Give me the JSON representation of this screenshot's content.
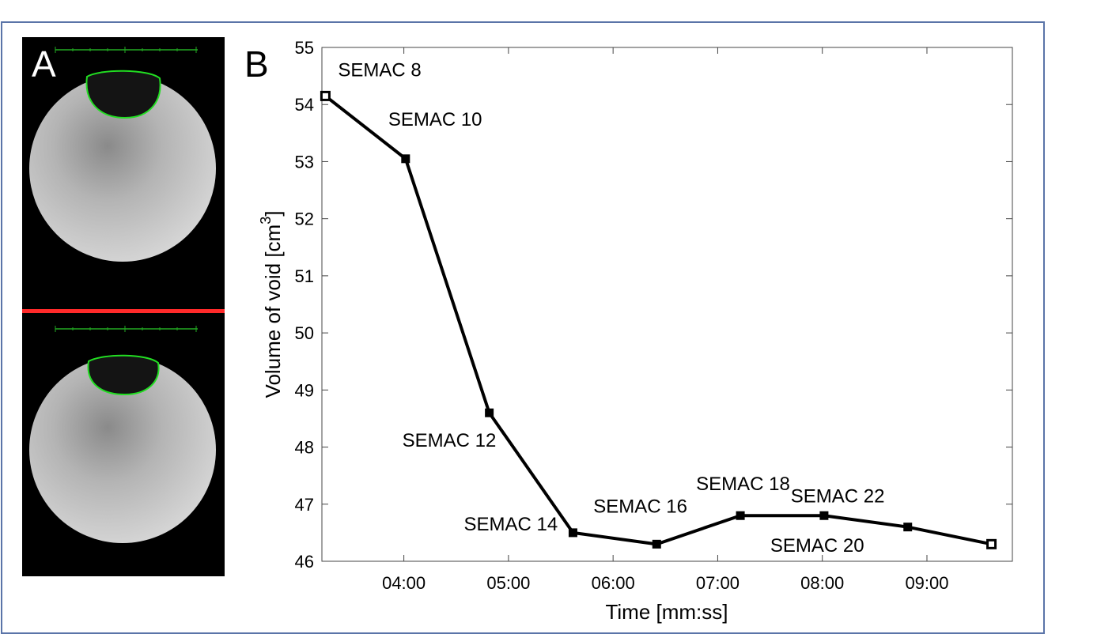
{
  "panels": {
    "a_label": "A",
    "b_label": "B"
  },
  "colors": {
    "frame": "#5a74a8",
    "contour": "#22dd22",
    "separator": "#ff2a2a",
    "line": "#000000"
  },
  "chart_data": {
    "type": "line",
    "title": "",
    "xlabel": "Time [mm:ss]",
    "ylabel": "Volume of void [cm",
    "ylabel_superscript": "3",
    "ylabel_suffix": "]",
    "xlim": [
      "03:13",
      "09:49"
    ],
    "ylim": [
      46,
      55
    ],
    "x_ticks": [
      "04:00",
      "05:00",
      "06:00",
      "07:00",
      "08:00",
      "09:00"
    ],
    "y_ticks": [
      46,
      47,
      48,
      49,
      50,
      51,
      52,
      53,
      54,
      55
    ],
    "grid": false,
    "series": [
      {
        "x": [
          "03:15",
          "04:01",
          "04:49",
          "05:37",
          "06:25",
          "07:13",
          "08:01",
          "08:49",
          "09:37"
        ],
        "y": [
          54.15,
          53.05,
          48.6,
          46.5,
          46.3,
          46.8,
          46.8,
          46.6,
          46.3
        ],
        "labels": [
          "SEMAC 8",
          "SEMAC 10",
          "SEMAC 12",
          "SEMAC 14",
          "SEMAC 16",
          "SEMAC 18",
          "SEMAC 20",
          "SEMAC 22",
          ""
        ]
      }
    ]
  }
}
